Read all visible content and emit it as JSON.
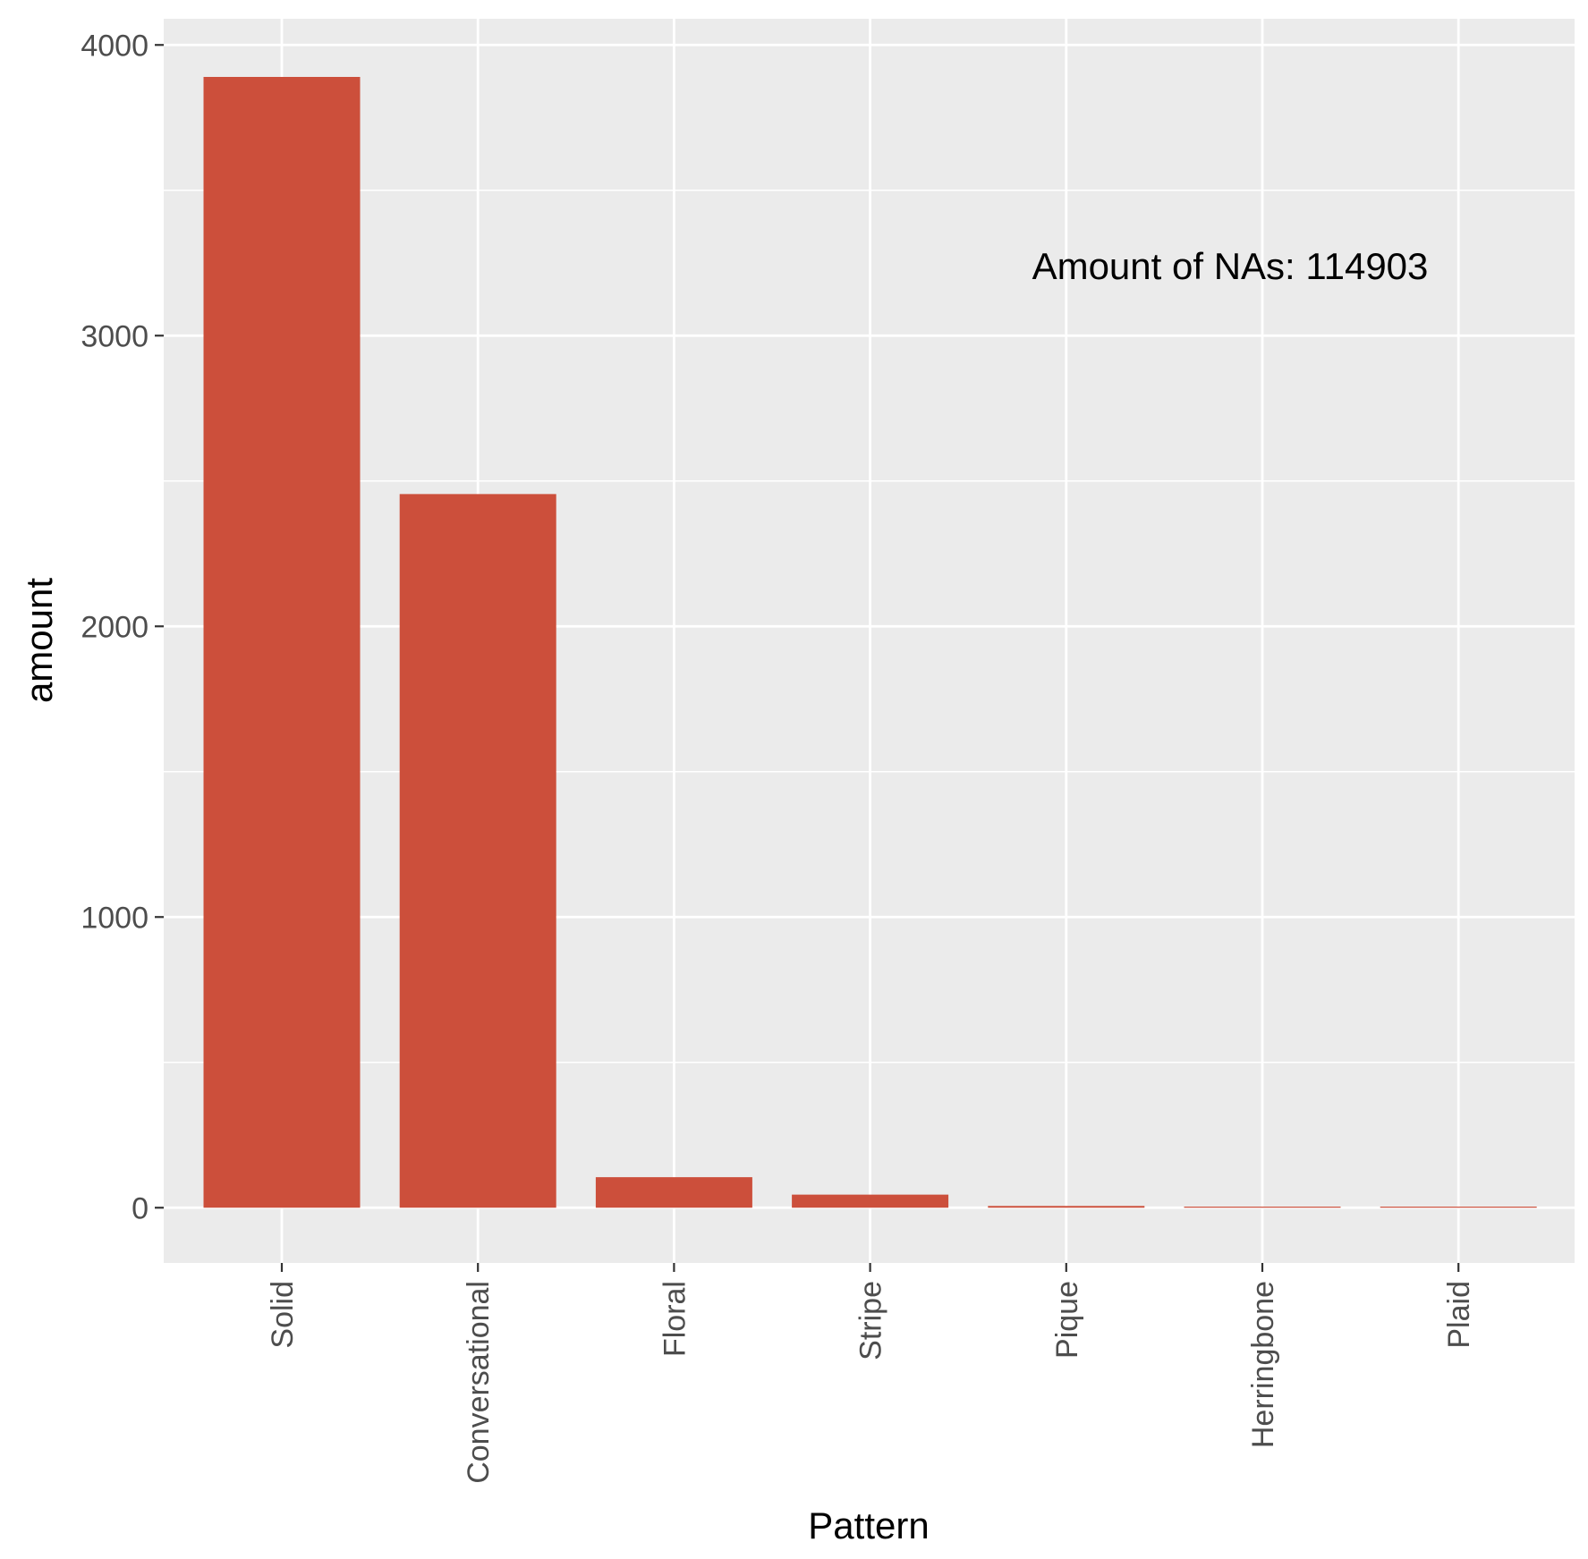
{
  "chart_data": {
    "type": "bar",
    "title": "",
    "xlabel": "Pattern",
    "ylabel": "amount",
    "categories": [
      "Solid",
      "Conversational",
      "Floral",
      "Stripe",
      "Pique",
      "Herringbone",
      "Plaid"
    ],
    "values": [
      3890,
      2455,
      105,
      45,
      6,
      2,
      2
    ],
    "ylim": [
      -190,
      4090
    ],
    "yticks": [
      0,
      1000,
      2000,
      3000,
      4000
    ],
    "ytick_labels": [
      "0",
      "1000",
      "2000",
      "3000",
      "4000"
    ],
    "grid": true,
    "annotation": "Amount of NAs: 114903",
    "colors": {
      "bar": "#CC4F3B",
      "panel": "#EBEBEB",
      "grid": "#FFFFFF"
    }
  }
}
